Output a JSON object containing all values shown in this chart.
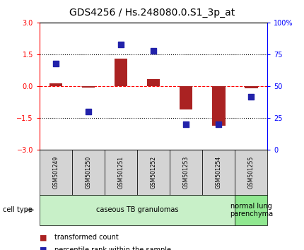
{
  "title": "GDS4256 / Hs.248080.0.S1_3p_at",
  "samples": [
    "GSM501249",
    "GSM501250",
    "GSM501251",
    "GSM501252",
    "GSM501253",
    "GSM501254",
    "GSM501255"
  ],
  "transformed_count": [
    0.15,
    -0.05,
    1.3,
    0.35,
    -1.1,
    -1.85,
    -0.1
  ],
  "percentile_rank": [
    68,
    30,
    83,
    78,
    20,
    20,
    42
  ],
  "ylim_left": [
    -3,
    3
  ],
  "ylim_right": [
    0,
    100
  ],
  "yticks_left": [
    -3,
    -1.5,
    0,
    1.5,
    3
  ],
  "yticks_right": [
    0,
    25,
    50,
    75,
    100
  ],
  "bar_color": "#aa2222",
  "dot_color": "#2222aa",
  "cell_types": [
    {
      "label": "caseous TB granulomas",
      "samples_idx": [
        0,
        1,
        2,
        3,
        4,
        5
      ],
      "color": "#c8f0c8"
    },
    {
      "label": "normal lung\nparenchyma",
      "samples_idx": [
        6
      ],
      "color": "#90e890"
    }
  ],
  "cell_type_label": "cell type",
  "legend_bar_label": "transformed count",
  "legend_dot_label": "percentile rank within the sample",
  "sample_box_color": "#d4d4d4",
  "bar_width": 0.4,
  "dot_size": 40,
  "tick_label_fontsize": 7,
  "title_fontsize": 10,
  "sample_fontsize": 5.5,
  "cell_type_fontsize": 7,
  "legend_fontsize": 7
}
